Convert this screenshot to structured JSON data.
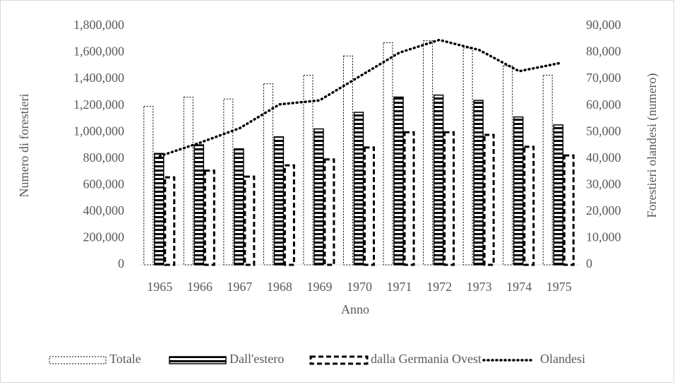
{
  "chart_data": {
    "type": "bar",
    "x_label": "Anno",
    "y_label": "Numero di forestieri",
    "y2_label": "Forestieri olandesi (numero)",
    "categories": [
      "1965",
      "1966",
      "1967",
      "1968",
      "1969",
      "1970",
      "1971",
      "1972",
      "1973",
      "1974",
      "1975"
    ],
    "series": [
      {
        "name": "Totale",
        "type": "bar",
        "color": "#000000",
        "values": [
          1195000,
          1265000,
          1250000,
          1365000,
          1430000,
          1575000,
          1675000,
          1690000,
          1635000,
          1500000,
          1430000
        ]
      },
      {
        "name": "Dall'estero",
        "type": "bar",
        "color": "#000000",
        "values": [
          840000,
          905000,
          875000,
          965000,
          1025000,
          1150000,
          1265000,
          1280000,
          1240000,
          1115000,
          1055000
        ]
      },
      {
        "name": "dalla Germania Ovest",
        "type": "bar",
        "color": "#000000",
        "values": [
          660000,
          710000,
          665000,
          750000,
          795000,
          885000,
          1000000,
          1000000,
          980000,
          890000,
          825000
        ]
      },
      {
        "name": "Olandesi",
        "type": "line",
        "axis": "y2",
        "color": "#000000",
        "values": [
          41000,
          46000,
          51500,
          60500,
          62000,
          71000,
          80000,
          84800,
          81000,
          73000,
          76000
        ]
      }
    ],
    "ylim": [
      0,
      1800000
    ],
    "yticks": [
      0,
      {
        "value": 200000,
        "label": "200,000"
      },
      {
        "value": 400000,
        "label": "400,000"
      },
      {
        "value": 600000,
        "label": "600,000"
      },
      {
        "value": 800000,
        "label": "800,000"
      },
      {
        "value": 1000000,
        "label": "1,000,000"
      },
      {
        "value": 1200000,
        "label": "1,200,000"
      },
      {
        "value": 1400000,
        "label": "1,400,000"
      },
      {
        "value": 1600000,
        "label": "1,600,000"
      },
      {
        "value": 1800000,
        "label": "1,800,000"
      }
    ],
    "y2lim": [
      0,
      90000
    ],
    "y2ticks": [
      0,
      {
        "value": 10000,
        "label": "10,000"
      },
      {
        "value": 20000,
        "label": "20,000"
      },
      {
        "value": 30000,
        "label": "30,000"
      },
      {
        "value": 40000,
        "label": "40,000"
      },
      {
        "value": 50000,
        "label": "50,000"
      },
      {
        "value": 60000,
        "label": "60,000"
      },
      {
        "value": 70000,
        "label": "70,000"
      },
      {
        "value": 80000,
        "label": "80,000"
      },
      {
        "value": 90000,
        "label": "90,000"
      }
    ],
    "grid": false,
    "legend": "bottom"
  }
}
